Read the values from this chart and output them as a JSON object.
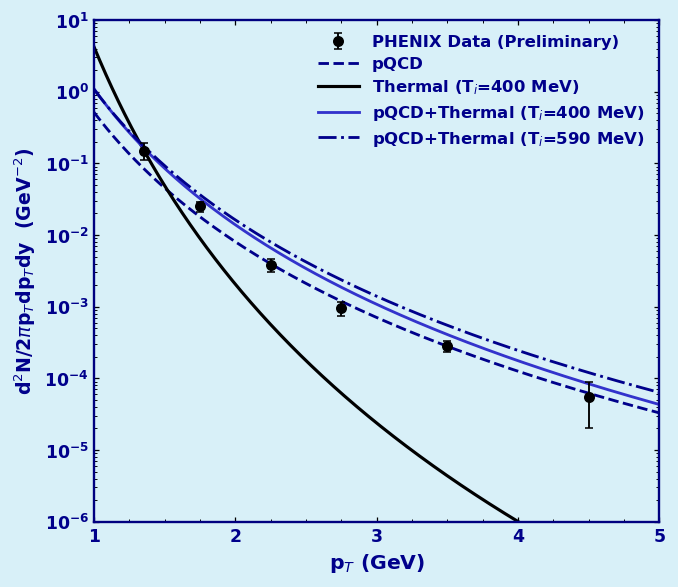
{
  "background_color": "#d8f0f8",
  "plot_bg_color": "#d8f0f8",
  "text_color": "#00008B",
  "xlabel": "p$_T$ (GeV)",
  "ylabel": "d$^2$N/2$\\pi$p$_T$dp$_T$dy  (GeV$^{-2}$)",
  "xlim": [
    1.0,
    5.0
  ],
  "ylim_log": [
    -6,
    1
  ],
  "data_x": [
    1.35,
    1.75,
    2.25,
    2.75,
    3.5,
    4.5
  ],
  "data_y": [
    0.15,
    0.025,
    0.0038,
    0.00095,
    0.00028,
    5.5e-05
  ],
  "data_yerr_low": [
    0.04,
    0.004,
    0.0008,
    0.0002,
    5e-05,
    3.5e-05
  ],
  "data_yerr_high": [
    0.04,
    0.004,
    0.0008,
    0.0002,
    5e-05,
    3.5e-05
  ],
  "pQCD_color": "#00008B",
  "thermal_color": "#000000",
  "pQCD_thermal_400_color": "#3333cc",
  "pQCD_thermal_590_color": "#00008B",
  "legend_fontsize": 10.5,
  "axis_label_fontsize": 13,
  "tick_label_fontsize": 11,
  "pQCD_n": 6.0,
  "pQCD_A_at_135": 0.085,
  "thermal_n": 11.0,
  "thermal_A_at_135": 0.155,
  "combo400_n": 6.3,
  "combo400_A_at_135": 0.165,
  "combo590_n": 6.05,
  "combo590_A_at_135": 0.175
}
